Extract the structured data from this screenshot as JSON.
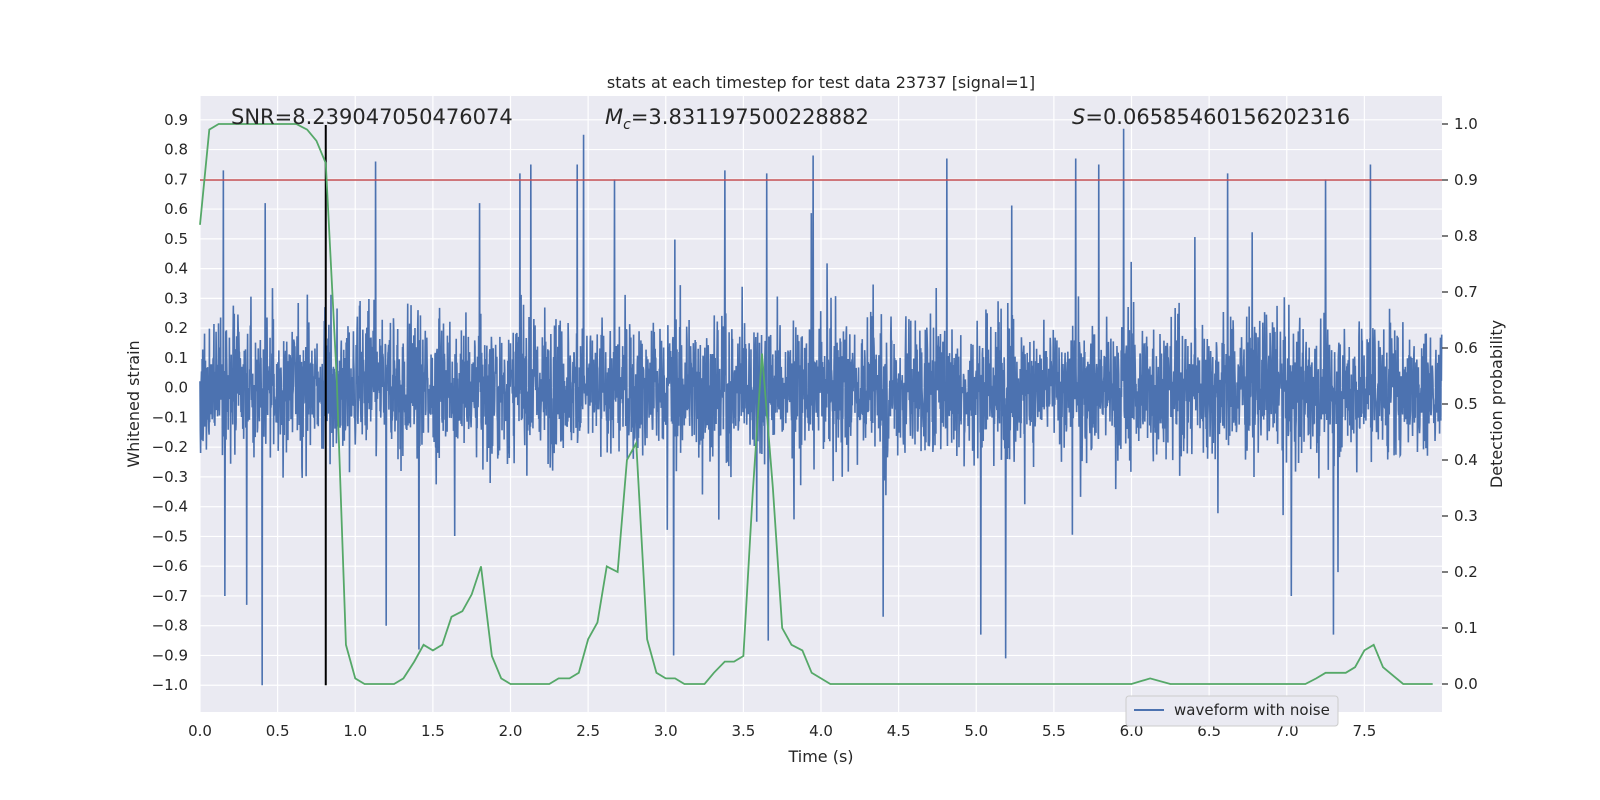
{
  "chart_data": {
    "type": "line",
    "title": "stats at each timestep for test data 23737 [signal=1]",
    "xlabel": "Time (s)",
    "ylabel_left": "Whitened strain",
    "ylabel_right": "Detection probability",
    "xlim": [
      0.0,
      8.0
    ],
    "ylim_left": [
      -1.09,
      0.98
    ],
    "ylim_right": [
      -0.05,
      1.05
    ],
    "x_ticks": [
      0.0,
      0.5,
      1.0,
      1.5,
      2.0,
      2.5,
      3.0,
      3.5,
      4.0,
      4.5,
      5.0,
      5.5,
      6.0,
      6.5,
      7.0,
      7.5
    ],
    "x_tick_labels": [
      "0.0",
      "0.5",
      "1.0",
      "1.5",
      "2.0",
      "2.5",
      "3.0",
      "3.5",
      "4.0",
      "4.5",
      "5.0",
      "5.5",
      "6.0",
      "6.5",
      "7.0",
      "7.5"
    ],
    "y_left_ticks": [
      -1.0,
      -0.9,
      -0.8,
      -0.7,
      -0.6,
      -0.5,
      -0.4,
      -0.3,
      -0.2,
      -0.1,
      0.0,
      0.1,
      0.2,
      0.3,
      0.4,
      0.5,
      0.6,
      0.7,
      0.8,
      0.9
    ],
    "y_left_tick_labels": [
      "−1.0",
      "−0.9",
      "−0.8",
      "−0.7",
      "−0.6",
      "−0.5",
      "−0.4",
      "−0.3",
      "−0.2",
      "−0.1",
      "0.0",
      "0.1",
      "0.2",
      "0.3",
      "0.4",
      "0.5",
      "0.6",
      "0.7",
      "0.8",
      "0.9"
    ],
    "y_right_ticks": [
      0.0,
      0.1,
      0.2,
      0.3,
      0.4,
      0.5,
      0.6,
      0.7,
      0.8,
      0.9,
      1.0
    ],
    "y_right_tick_labels": [
      "0.0",
      "0.1",
      "0.2",
      "0.3",
      "0.4",
      "0.5",
      "0.6",
      "0.7",
      "0.8",
      "0.9",
      "1.0"
    ],
    "annotations": {
      "snr": "SNR=8.239047050476074",
      "mc_symbol": "M",
      "mc_sub": "c",
      "mc_value": "=3.831197500228882",
      "s_symbol": "S",
      "s_value": "=0.06585460156202316"
    },
    "threshold": {
      "value": 0.9,
      "axis": "right",
      "color": "#c44e52"
    },
    "marker_line": {
      "x": 0.81,
      "y_from": -1.0,
      "y_to": 0.9,
      "color": "#000000"
    },
    "grid": true,
    "legend": {
      "location": "lower-right",
      "entries": [
        "waveform with noise"
      ]
    },
    "series": [
      {
        "name": "waveform with noise",
        "axis": "left",
        "color": "#4c72b0",
        "description": "dense noisy whitened strain, approx. 4096 samples, typical range -0.45..0.45, spikes up to 0.87 and down to -1.0",
        "spikes": [
          {
            "x": 0.15,
            "y": 0.73
          },
          {
            "x": 0.16,
            "y": -0.7
          },
          {
            "x": 0.4,
            "y": -1.0
          },
          {
            "x": 0.42,
            "y": 0.62
          },
          {
            "x": 0.3,
            "y": -0.73
          },
          {
            "x": 1.13,
            "y": 0.76
          },
          {
            "x": 1.41,
            "y": -0.88
          },
          {
            "x": 1.2,
            "y": -0.8
          },
          {
            "x": 2.06,
            "y": 0.72
          },
          {
            "x": 2.13,
            "y": 0.75
          },
          {
            "x": 2.43,
            "y": 0.75
          },
          {
            "x": 2.47,
            "y": 0.85
          },
          {
            "x": 2.67,
            "y": 0.7
          },
          {
            "x": 3.05,
            "y": -0.9
          },
          {
            "x": 3.38,
            "y": 0.73
          },
          {
            "x": 3.65,
            "y": 0.72
          },
          {
            "x": 3.66,
            "y": -0.85
          },
          {
            "x": 3.95,
            "y": 0.78
          },
          {
            "x": 4.4,
            "y": -0.77
          },
          {
            "x": 4.81,
            "y": 0.77
          },
          {
            "x": 5.03,
            "y": -0.83
          },
          {
            "x": 5.19,
            "y": -0.91
          },
          {
            "x": 5.64,
            "y": 0.77
          },
          {
            "x": 5.79,
            "y": 0.75
          },
          {
            "x": 5.95,
            "y": 0.87
          },
          {
            "x": 6.62,
            "y": 0.72
          },
          {
            "x": 7.03,
            "y": -0.7
          },
          {
            "x": 7.3,
            "y": -0.83
          },
          {
            "x": 7.54,
            "y": 0.75
          },
          {
            "x": 7.25,
            "y": 0.7
          }
        ]
      },
      {
        "name": "detection probability",
        "axis": "right",
        "color": "#55a868",
        "x": [
          0.0,
          0.06,
          0.12,
          0.19,
          0.25,
          0.31,
          0.38,
          0.44,
          0.5,
          0.56,
          0.62,
          0.69,
          0.75,
          0.81,
          0.88,
          0.94,
          1.0,
          1.06,
          1.12,
          1.19,
          1.25,
          1.31,
          1.38,
          1.44,
          1.5,
          1.56,
          1.62,
          1.69,
          1.75,
          1.81,
          1.88,
          1.94,
          2.0,
          2.06,
          2.12,
          2.19,
          2.25,
          2.31,
          2.38,
          2.44,
          2.5,
          2.56,
          2.62,
          2.69,
          2.75,
          2.81,
          2.88,
          2.94,
          3.0,
          3.06,
          3.12,
          3.19,
          3.25,
          3.31,
          3.38,
          3.44,
          3.5,
          3.56,
          3.62,
          3.69,
          3.75,
          3.81,
          3.88,
          3.94,
          4.0,
          4.06,
          4.12,
          4.19,
          4.25,
          4.5,
          4.75,
          5.0,
          5.25,
          5.5,
          5.75,
          6.0,
          6.12,
          6.25,
          6.5,
          6.75,
          6.88,
          7.0,
          7.12,
          7.19,
          7.25,
          7.31,
          7.38,
          7.44,
          7.5,
          7.56,
          7.62,
          7.75,
          7.94
        ],
        "y": [
          0.82,
          0.99,
          1.0,
          1.0,
          1.0,
          1.0,
          1.0,
          1.0,
          1.0,
          1.0,
          1.0,
          0.99,
          0.97,
          0.93,
          0.55,
          0.07,
          0.01,
          0.0,
          0.0,
          0.0,
          0.0,
          0.01,
          0.04,
          0.07,
          0.06,
          0.07,
          0.12,
          0.13,
          0.16,
          0.21,
          0.05,
          0.01,
          0.0,
          0.0,
          0.0,
          0.0,
          0.0,
          0.01,
          0.01,
          0.02,
          0.08,
          0.11,
          0.21,
          0.2,
          0.4,
          0.43,
          0.08,
          0.02,
          0.01,
          0.01,
          0.0,
          0.0,
          0.0,
          0.02,
          0.04,
          0.04,
          0.05,
          0.34,
          0.59,
          0.35,
          0.1,
          0.07,
          0.06,
          0.02,
          0.01,
          0.0,
          0.0,
          0.0,
          0.0,
          0.0,
          0.0,
          0.0,
          0.0,
          0.0,
          0.0,
          0.0,
          0.01,
          0.0,
          0.0,
          0.0,
          0.0,
          0.0,
          0.0,
          0.01,
          0.02,
          0.02,
          0.02,
          0.03,
          0.06,
          0.07,
          0.03,
          0.0,
          0.0
        ]
      }
    ]
  }
}
